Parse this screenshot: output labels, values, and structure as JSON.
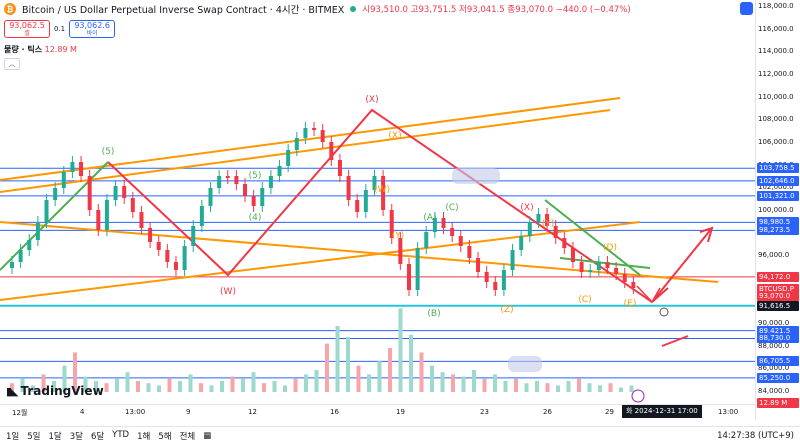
{
  "header": {
    "title": "Bitcoin / US Dollar Perpetual Inverse Swap Contract · 4시간 · BITMEX",
    "ohlc": "시93,510.0 고93,751.5 저93,041.5 종93,070.0 −440.0 (−0.47%)"
  },
  "trade": {
    "sell_price": "93,062.5",
    "sell_label": "셀",
    "spread": "0.1",
    "buy_price": "93,062.6",
    "buy_label": "바이"
  },
  "volume": {
    "label": "물량 · 틱스",
    "value": "12.89 M"
  },
  "price_axis": {
    "ticks": [
      "118,000.0",
      "116,000.0",
      "114,000.0",
      "112,000.0",
      "110,000.0",
      "108,000.0",
      "106,000.0",
      "104,000.0",
      "102,000.0",
      "100,000.0",
      "98,000.0",
      "96,000.0",
      "94,000.0",
      "92,000.0",
      "90,000.0",
      "88,000.0",
      "86,000.0",
      "84,000.0"
    ],
    "labels": [
      {
        "text": "103,758.5",
        "color": "#2962ff",
        "price": 103758.5
      },
      {
        "text": "102,646.0",
        "color": "#2962ff",
        "price": 102646.0
      },
      {
        "text": "101,321.0",
        "color": "#2962ff",
        "price": 101321.0
      },
      {
        "text": "98,980.5",
        "color": "#2962ff",
        "price": 98980.5
      },
      {
        "text": "98,273.5",
        "color": "#2962ff",
        "price": 98273.5
      },
      {
        "text": "94,172.0",
        "color": "#f23645",
        "price": 94172.0
      },
      {
        "text": "BTCUSD.P",
        "color": "#f23645",
        "price": 93070.0
      },
      {
        "text": "93,070.0",
        "color": "#f23645",
        "price": 92500.0
      },
      {
        "text": "91,616.5",
        "color": "#131722",
        "price": 91616.5
      },
      {
        "text": "89,421.5",
        "color": "#2962ff",
        "price": 89421.5
      },
      {
        "text": "88,730.0",
        "color": "#2962ff",
        "price": 88730.0
      },
      {
        "text": "86,705.5",
        "color": "#2962ff",
        "price": 86705.5
      },
      {
        "text": "85,250.0",
        "color": "#2962ff",
        "price": 85250.0
      },
      {
        "text": "12.89 M",
        "color": "#f23645",
        "price": 83000.0
      }
    ]
  },
  "time_axis": [
    {
      "label": "12월",
      "x": 12
    },
    {
      "label": "4",
      "x": 80
    },
    {
      "label": "13:00",
      "x": 125
    },
    {
      "label": "9",
      "x": 186
    },
    {
      "label": "12",
      "x": 248
    },
    {
      "label": "16",
      "x": 330
    },
    {
      "label": "19",
      "x": 396
    },
    {
      "label": "23",
      "x": 480
    },
    {
      "label": "26",
      "x": 543
    },
    {
      "label": "29",
      "x": 605
    },
    {
      "label": "13:00",
      "x": 718
    }
  ],
  "crosshair_date": "화 2024-12-31  17:00",
  "footer": {
    "ranges": [
      "1일",
      "5일",
      "1달",
      "3달",
      "6달",
      "YTD",
      "1해",
      "5해",
      "전체"
    ],
    "time": "14:27:38 (UTC+9)"
  },
  "brand": "TradingView",
  "chart_data": {
    "type": "candlestick",
    "title": "Bitcoin / US Dollar Perpetual Inverse Swap Contract · 4시간 · BITMEX",
    "ylim": [
      83000,
      119000
    ],
    "wave_labels": [
      "(5)",
      "(X)",
      "(W)",
      "(Y)",
      "(Z)",
      "(A)",
      "(B)",
      "(C)",
      "(D)",
      "(E)"
    ],
    "last_price": 93070.0,
    "horizontal_levels": [
      103758.5,
      102646.0,
      101321.0,
      98980.5,
      98273.5,
      94172.0,
      91616.5,
      89421.5,
      88730.0,
      86705.5,
      85250.0
    ]
  }
}
